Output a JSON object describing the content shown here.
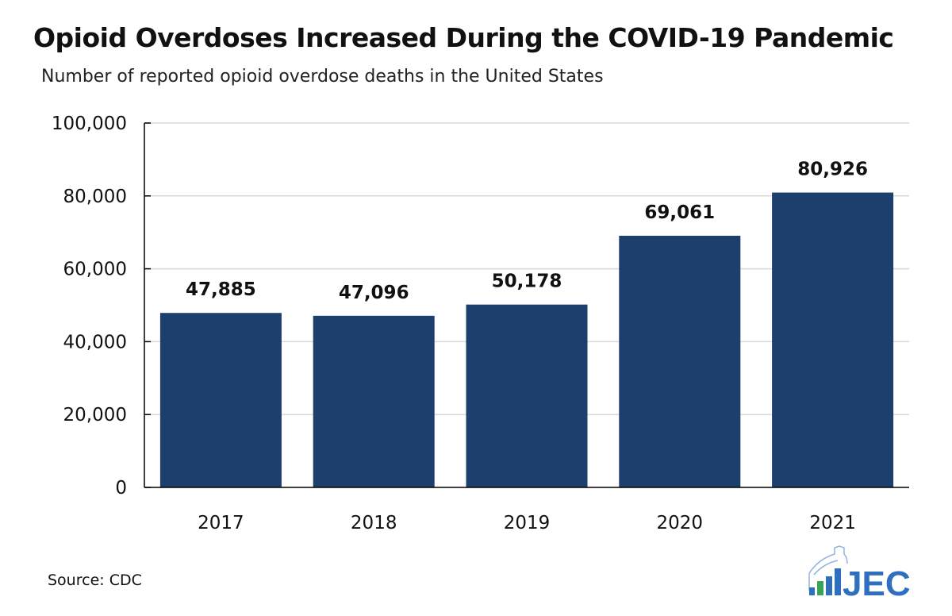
{
  "chart_data": {
    "type": "bar",
    "title": "Opioid Overdoses Increased During the COVID-19 Pandemic",
    "subtitle": "Number of reported opioid overdose deaths in the United States",
    "categories": [
      "2017",
      "2018",
      "2019",
      "2020",
      "2021"
    ],
    "values": [
      47885,
      47096,
      50178,
      69061,
      80926
    ],
    "data_labels": [
      "47,885",
      "47,096",
      "50,178",
      "69,061",
      "80,926"
    ],
    "ylim": [
      0,
      100000
    ],
    "yticks": [
      0,
      20000,
      40000,
      60000,
      80000,
      100000
    ],
    "ytick_labels": [
      "0",
      "20,000",
      "40,000",
      "60,000",
      "80,000",
      "100,000"
    ],
    "xlabel": "",
    "ylabel": "",
    "grid": true,
    "bar_color": "#1c3f6e"
  },
  "source": "Source: CDC",
  "logo": {
    "text": "JEC",
    "color": "#2f6fc0",
    "accent": "#3aa35a"
  }
}
